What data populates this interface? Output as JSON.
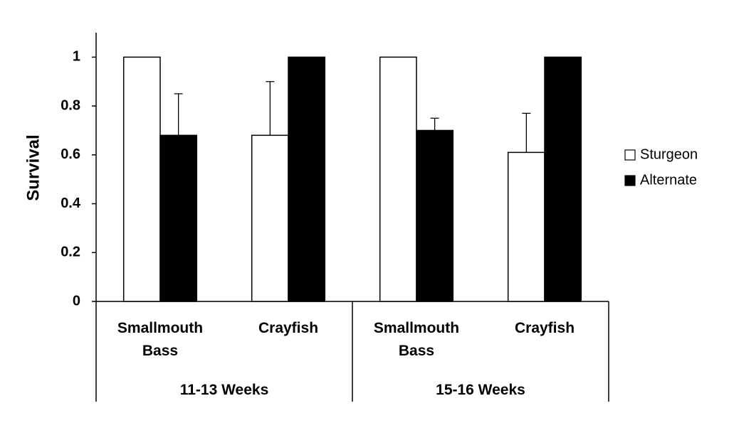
{
  "chart_data": {
    "type": "bar",
    "y_label": "Survival",
    "groups": [
      "11-13 Weeks",
      "15-16 Weeks"
    ],
    "categories": [
      "Smallmouth Bass",
      "Crayfish",
      "Smallmouth Bass",
      "Crayfish"
    ],
    "series": [
      {
        "name": "Sturgeon",
        "color": "#ffffff",
        "values": [
          1,
          0.68,
          1,
          0.61
        ],
        "errors": [
          null,
          0.22,
          null,
          0.16
        ]
      },
      {
        "name": "Alternate",
        "color": "#000000",
        "values": [
          0.68,
          1,
          0.7,
          1
        ],
        "errors": [
          0.17,
          null,
          0.05,
          null
        ]
      }
    ],
    "ylim": [
      0,
      1.1
    ],
    "yticks": [
      0,
      0.2,
      0.4,
      0.6,
      0.8,
      1
    ],
    "legend": "right"
  }
}
